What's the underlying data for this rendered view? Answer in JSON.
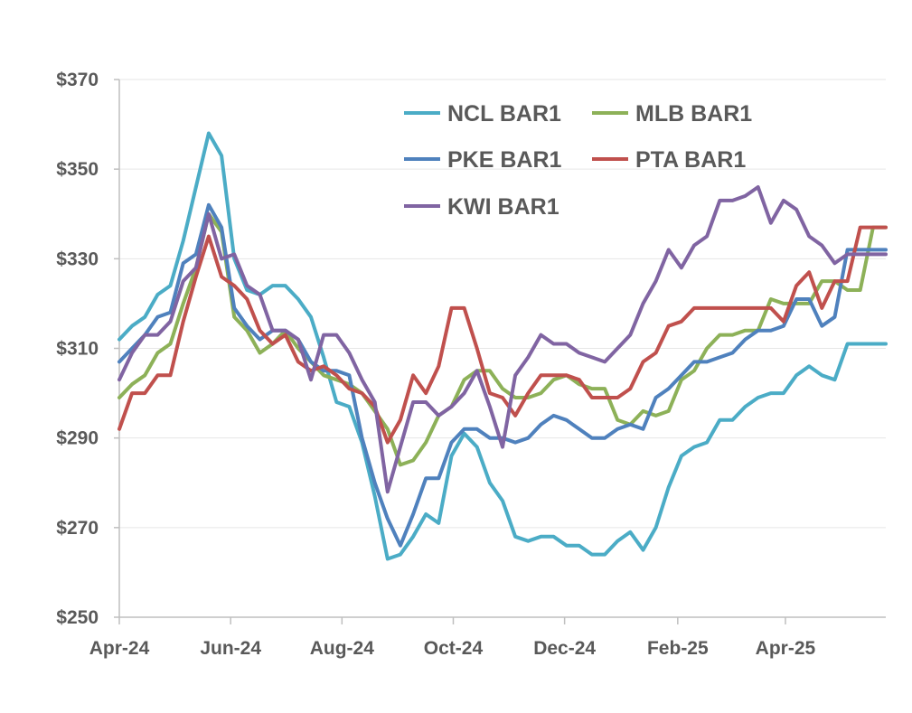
{
  "chart_data": {
    "type": "line",
    "title": "",
    "xlabel": "",
    "ylabel": "",
    "ylim": [
      250,
      370
    ],
    "yticks": [
      250,
      270,
      290,
      310,
      330,
      350,
      370
    ],
    "ytick_labels": [
      "$250",
      "$270",
      "$290",
      "$310",
      "$330",
      "$350",
      "$370"
    ],
    "xlim": [
      "2024-04-01",
      "2025-05-26"
    ],
    "xticks": [
      "2024-04-01",
      "2024-06-01",
      "2024-08-01",
      "2024-10-01",
      "2024-12-01",
      "2025-02-01",
      "2025-04-01"
    ],
    "xtick_labels": [
      "Apr-24",
      "Jun-24",
      "Aug-24",
      "Oct-24",
      "Dec-24",
      "Feb-25",
      "Apr-25"
    ],
    "grid": "horizontal",
    "legend_position": "top-right",
    "x": [
      "2024-04-01",
      "2024-04-08",
      "2024-04-15",
      "2024-04-22",
      "2024-04-29",
      "2024-05-06",
      "2024-05-13",
      "2024-05-20",
      "2024-05-27",
      "2024-06-03",
      "2024-06-10",
      "2024-06-17",
      "2024-06-24",
      "2024-07-01",
      "2024-07-08",
      "2024-07-15",
      "2024-07-22",
      "2024-07-29",
      "2024-08-05",
      "2024-08-12",
      "2024-08-19",
      "2024-08-26",
      "2024-09-02",
      "2024-09-09",
      "2024-09-16",
      "2024-09-23",
      "2024-09-30",
      "2024-10-07",
      "2024-10-14",
      "2024-10-21",
      "2024-10-28",
      "2024-11-04",
      "2024-11-11",
      "2024-11-18",
      "2024-11-25",
      "2024-12-02",
      "2024-12-09",
      "2024-12-16",
      "2024-12-23",
      "2024-12-30",
      "2025-01-06",
      "2025-01-13",
      "2025-01-20",
      "2025-01-27",
      "2025-02-03",
      "2025-02-10",
      "2025-02-17",
      "2025-02-24",
      "2025-03-03",
      "2025-03-10",
      "2025-03-17",
      "2025-03-24",
      "2025-03-31",
      "2025-04-07",
      "2025-04-14",
      "2025-04-21",
      "2025-04-28",
      "2025-05-05",
      "2025-05-12",
      "2025-05-19",
      "2025-05-26"
    ],
    "series": [
      {
        "name": "NCL BAR1",
        "color": "#4BACC6",
        "values": [
          312,
          315,
          317,
          322,
          324,
          334,
          346,
          358,
          353,
          330,
          323,
          322,
          324,
          324,
          321,
          317,
          308,
          298,
          297,
          289,
          277,
          263,
          264,
          268,
          273,
          271,
          286,
          291,
          288,
          280,
          276,
          268,
          267,
          268,
          268,
          266,
          266,
          264,
          264,
          267,
          269,
          265,
          270,
          279,
          286,
          288,
          289,
          294,
          294,
          297,
          299,
          300,
          300,
          304,
          306,
          304,
          303,
          311,
          311,
          311,
          311
        ]
      },
      {
        "name": "MLB BAR1",
        "color": "#8DB158",
        "values": [
          299,
          302,
          304,
          309,
          311,
          320,
          328,
          340,
          336,
          317,
          314,
          309,
          311,
          314,
          310,
          307,
          304,
          303,
          302,
          300,
          296,
          292,
          284,
          285,
          289,
          295,
          297,
          303,
          305,
          305,
          301,
          299,
          299,
          300,
          303,
          304,
          302,
          301,
          301,
          294,
          293,
          296,
          295,
          296,
          303,
          305,
          310,
          313,
          313,
          314,
          314,
          321,
          320,
          320,
          320,
          325,
          325,
          323,
          323,
          337,
          337
        ]
      },
      {
        "name": "PKE BAR1",
        "color": "#4F81BD",
        "values": [
          307,
          310,
          313,
          317,
          318,
          329,
          331,
          342,
          337,
          319,
          315,
          312,
          314,
          314,
          312,
          307,
          305,
          305,
          304,
          290,
          280,
          272,
          266,
          273,
          281,
          281,
          289,
          292,
          292,
          290,
          290,
          289,
          290,
          293,
          295,
          294,
          292,
          290,
          290,
          292,
          293,
          292,
          299,
          301,
          304,
          307,
          307,
          308,
          309,
          312,
          314,
          314,
          315,
          321,
          321,
          315,
          317,
          332,
          332,
          332,
          332
        ]
      },
      {
        "name": "PTA BAR1",
        "color": "#C0504D",
        "values": [
          292,
          300,
          300,
          304,
          304,
          316,
          326,
          335,
          326,
          324,
          321,
          314,
          311,
          313,
          307,
          305,
          306,
          304,
          301,
          300,
          297,
          289,
          294,
          304,
          300,
          306,
          319,
          319,
          310,
          300,
          299,
          295,
          300,
          304,
          304,
          304,
          303,
          299,
          299,
          299,
          301,
          307,
          309,
          315,
          316,
          319,
          319,
          319,
          319,
          319,
          319,
          319,
          316,
          324,
          327,
          319,
          325,
          325,
          337,
          337,
          337
        ]
      },
      {
        "name": "KWI BAR1",
        "color": "#8064A2",
        "values": [
          303,
          309,
          313,
          313,
          316,
          325,
          328,
          340,
          330,
          331,
          324,
          322,
          314,
          314,
          312,
          303,
          313,
          313,
          309,
          303,
          298,
          278,
          288,
          298,
          298,
          295,
          297,
          300,
          305,
          297,
          288,
          304,
          308,
          313,
          311,
          311,
          309,
          308,
          307,
          310,
          313,
          320,
          325,
          332,
          328,
          333,
          335,
          343,
          343,
          344,
          346,
          338,
          343,
          341,
          335,
          333,
          329,
          331,
          331,
          331,
          331
        ]
      }
    ]
  }
}
